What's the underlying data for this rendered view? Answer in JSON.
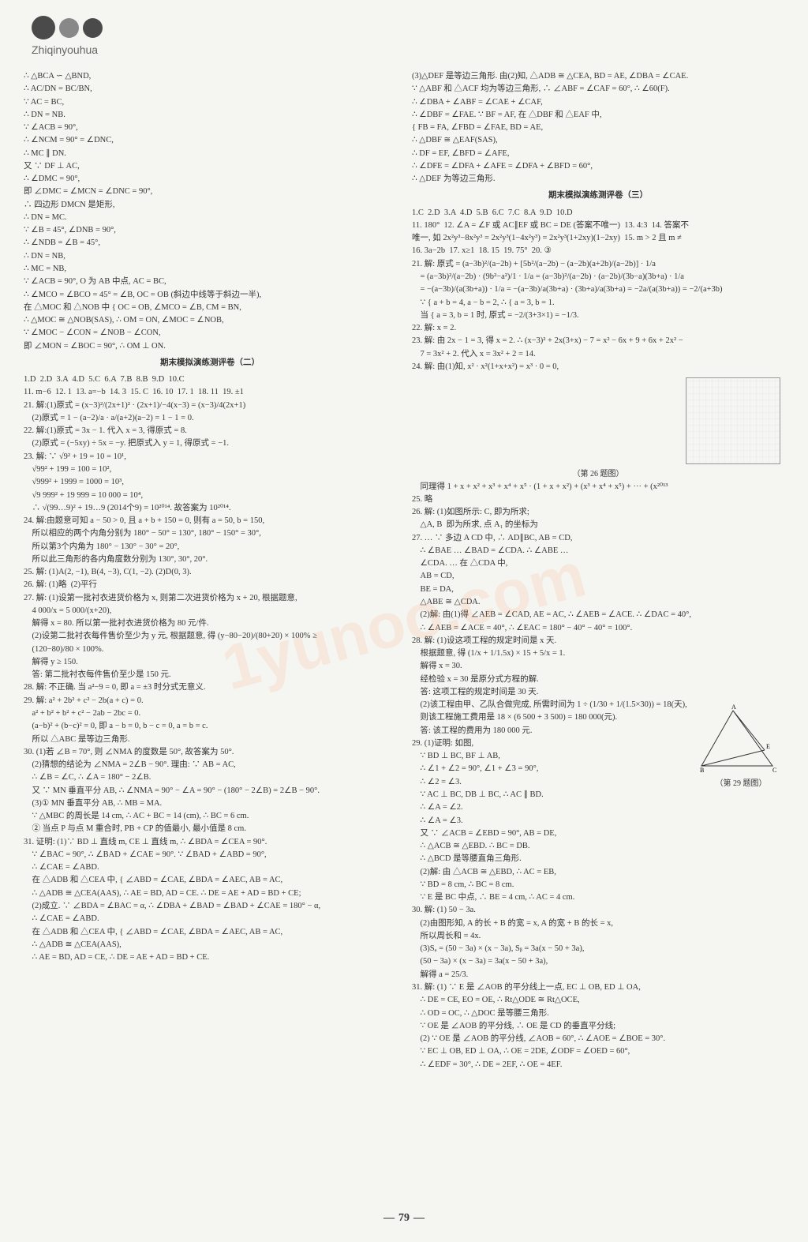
{
  "header": {
    "pinyin": "Zhiqinyouhua"
  },
  "page_number": "79",
  "watermark": "1yunoo.com",
  "left_column": {
    "lines": [
      "∴ △BCA ∽ △BND,",
      "∴ AC/DN = BC/BN,",
      "∵ AC = BC,",
      "∴ DN = NB.",
      "∵ ∠ACB = 90°,",
      "∴ ∠NCM = 90° = ∠DNC,",
      "∴ MC ∥ DN.",
      "又 ∵ DF ⊥ AC,",
      "∴ ∠DMC = 90°,",
      "即 ∠DMC = ∠MCN = ∠DNC = 90°,",
      "∴ 四边形 DMCN 是矩形,",
      "∴ DN = MC.",
      "∵ ∠B = 45°, ∠DNB = 90°,",
      "∴ ∠NDB = ∠B = 45°,",
      "∴ DN = NB,",
      "∴ MC = NB,",
      "∵ ∠ACB = 90°, O 为 AB 中点, AC = BC,",
      "∴ ∠MCO = ∠BCO = 45° = ∠B, OC = OB (斜边中线等于斜边一半),",
      "在 △MOC 和 △NOB 中 { OC = OB, ∠MCO = ∠B, CM = BN,",
      "∴ △MOC ≅ △NOB(SAS), ∴ OM = ON, ∠MOC = ∠NOB,",
      "∵ ∠MOC − ∠CON = ∠NOB − ∠CON,",
      "即 ∠MON = ∠BOC = 90°, ∴ OM ⊥ ON."
    ],
    "exam2_title": "期末模拟演练测评卷（二）",
    "exam2_answers": "1.D  2.D  3.A  4.D  5.C  6.A  7.B  8.B  9.D  10.C",
    "exam2_fill": "11. m−6  12. 1  13. a=−b  14. 3  15. C  16. 10  17. 1  18. 11  19. ±1",
    "problems": [
      "21. 解:(1)原式 = (x−3)²/(2x+1)² · (2x+1)/−4(x−3) = (x−3)/4(2x+1)",
      "    (2)原式 = 1 − (a−2)/a · a/(a+2)(a−2) = 1 − 1 = 0.",
      "22. 解:(1)原式 = 3x − 1. 代入 x = 3, 得原式 = 8.",
      "    (2)原式 = (−5xy) ÷ 5x = −y. 把原式入 y = 1, 得原式 = −1.",
      "23. 解: ∵ √9² + 19 = 10 = 10¹,",
      "    √99² + 199 = 100 = 10²,",
      "    √999² + 1999 = 1000 = 10³,",
      "    √9 999² + 19 999 = 10 000 = 10⁴,",
      "    ∴ √(99…9)² + 19…9 (2014个9) = 10²⁰¹⁴. 故答案为 10²⁰¹⁴.",
      "24. 解:由题意可知 a − 50 > 0, 且 a + b + 150 = 0, 则有 a = 50, b = 150,",
      "    所以相应的两个内角分别为 180° − 50° = 130°, 180° − 150° = 30°,",
      "    所以第3个内角为 180° − 130° − 30° = 20°,",
      "    所以此三角形的各内角度数分别为 130°, 30°, 20°.",
      "25. 解: (1)A(2, −1), B(4, −3), C(1, −2). (2)D(0, 3).",
      "26. 解: (1)略  (2)平行",
      "27. 解: (1)设第一批衬衣进货价格为 x, 则第二次进货价格为 x + 20, 根据题意,",
      "    4 000/x = 5 000/(x+20),",
      "    解得 x = 80. 所以第一批衬衣进货价格为 80 元/件.",
      "    (2)设第二批衬衣每件售价至少为 y 元, 根据题意, 得 (y−80−20)/(80+20) × 100% ≥",
      "    (120−80)/80 × 100%.",
      "    解得 y ≥ 150.",
      "    答: 第二批衬衣每件售价至少是 150 元.",
      "28. 解: 不正确. 当 a²−9 = 0, 即 a = ±3 时分式无意义.",
      "29. 解: a² + 2b² + c² − 2b(a + c) = 0.",
      "    a² + b² + b² + c² − 2ab − 2bc = 0.",
      "    (a−b)² + (b−c)² = 0, 即 a − b = 0, b − c = 0, a = b = c.",
      "    所以 △ABC 是等边三角形.",
      "30. (1)若 ∠B = 70°, 则 ∠NMA 的度数是 50°, 故答案为 50°.",
      "    (2)猜想的结论为 ∠NMA = 2∠B − 90°. 理由: ∵ AB = AC,",
      "    ∴ ∠B = ∠C, ∴ ∠A = 180° − 2∠B.",
      "    又 ∵ MN 垂直平分 AB, ∴ ∠NMA = 90° − ∠A = 90° − (180° − 2∠B) = 2∠B − 90°.",
      "    (3)① MN 垂直平分 AB, ∴ MB = MA.",
      "    ∵ △MBC 的周长是 14 cm, ∴ AC + BC = 14 (cm), ∴ BC = 6 cm.",
      "    ② 当点 P 与点 M 重合时, PB + CP 的值最小, 最小值是 8 cm.",
      "31. 证明: (1)∵ BD ⊥ 直线 m, CE ⊥ 直线 m, ∴ ∠BDA = ∠CEA = 90°.",
      "    ∵ ∠BAC = 90°, ∴ ∠BAD + ∠CAE = 90°. ∵ ∠BAD + ∠ABD = 90°,",
      "    ∴ ∠CAE = ∠ABD.",
      "    在 △ADB 和 △CEA 中, { ∠ABD = ∠CAE, ∠BDA = ∠AEC, AB = AC,",
      "    ∴ △ADB ≅ △CEA(AAS), ∴ AE = BD, AD = CE. ∴ DE = AE + AD = BD + CE;",
      "    (2)成立. ∵ ∠BDA = ∠BAC = α, ∴ ∠DBA + ∠BAD = ∠BAD + ∠CAE = 180° − α,",
      "    ∴ ∠CAE = ∠ABD.",
      "    在 △ADB 和 △CEA 中, { ∠ABD = ∠CAE, ∠BDA = ∠AEC, AB = AC,",
      "    ∴ △ADB ≅ △CEA(AAS),",
      "    ∴ AE = BD, AD = CE, ∴ DE = AE + AD = BD + CE."
    ]
  },
  "right_column": {
    "lines": [
      "(3)△DEF 是等边三角形. 由(2)知, △ADB ≅ △CEA, BD = AE, ∠DBA = ∠CAE.",
      "∵ △ABF 和 △ACF 均为等边三角形, ∴ ∠ABF = ∠CAF = 60°, ∴ ∠60(F).",
      "∴ ∠DBA + ∠ABF = ∠CAE + ∠CAF,",
      "∴ ∠DBF = ∠FAE. ∵ BF = AF, 在 △DBF 和 △EAF 中,",
      "{ FB = FA, ∠FBD = ∠FAE, BD = AE,",
      "∴ △DBF ≅ △EAF(SAS),",
      "∴ DF = EF, ∠BFD = ∠AFE,",
      "∴ ∠DFE = ∠DFA + ∠AFE = ∠DFA + ∠BFD = 60°,",
      "∴ △DEF 为等边三角形."
    ],
    "exam3_title": "期末模拟演练测评卷（三）",
    "exam3_answers": "1.C  2.D  3.A  4.D  5.B  6.C  7.C  8.A  9.D  10.D",
    "exam3_fill": "11. 180°  12. ∠A = ∠F 或 AC∥EF 或 BC = DE (答案不唯一)  13. 4:3  14. 答案不",
    "exam3_fill2": "唯一, 如 2x²y³−8x²y³ = 2x²y³(1−4x²y³) = 2x²y³(1+2xy)(1−2xy)  15. m > 2 且 m ≠",
    "exam3_fill3": "16. 3a−2b  17. x≥1  18. 15  19. 75°  20. ③",
    "problems": [
      "21. 解: 原式 = (a−3b)²/(a−2b) + [5b²/(a−2b) − (a−2b)(a+2b)/(a−2b)] · 1/a",
      "    = (a−3b)²/(a−2b) · (9b²−a²)/1 · 1/a = (a−3b)²/(a−2b) · (a−2b)/(3b−a)(3b+a) · 1/a",
      "    = −(a−3b)/(a(3b+a)) · 1/a = −(a−3b)/a(3b+a) · (3b+a)/a(3b+a) = −2a/(a(3b+a)) = −2/(a+3b)",
      "    ∵ { a + b = 4, a − b = 2, ∴ { a = 3, b = 1.",
      "    当 { a = 3, b = 1 时, 原式 = −2/(3+3×1) = −1/3.",
      "22. 解: x = 2.",
      "23. 解: 由 2x − 1 = 3, 得 x = 2. ∴ (x−3)² + 2x(3+x) − 7 = x² − 6x + 9 + 6x + 2x² −",
      "    7 = 3x² + 2. 代入 x = 3x² + 2 = 14.",
      "24. 解: 由(1)知, x² · x²(1+x+x²) = x³ · 0 = 0,",
      "    同理得 1 + x + x² + x³ + x⁴ + x⁵ · (1 + x + x²) + (x³ + x⁴ + x⁵) + ··· + (x²⁰¹³",
      "25. 略",
      "26. 解: (1)如图所示: C, 即为所求;",
      "    △A, B  即为所求, 点 A₁ 的坐标为",
      "27. … ∵ 多边 A CD 中, ∴ AD∥BC, AB = CD,",
      "    ∴ ∠BAE … ∠BAD = ∠CDA. ∴ ∠ABE …",
      "    ∠CDA. … 在 △CDA 中,",
      "    AB = CD,",
      "    BE = DA,",
      "    △ABE ≅ △CDA.",
      "    (2)解: 由(1)得 ∠AEB = ∠CAD, AE = AC, ∴ ∠AEB = ∠ACE. ∴ ∠DAC = 40°,",
      "    ∴ ∠AEB = ∠ACE = 40°, ∴ ∠EAC = 180° − 40° − 40° = 100°.",
      "28. 解: (1)设这项工程的规定时间是 x 天.",
      "    根据题意, 得 (1/x + 1/1.5x) × 15 + 5/x = 1.",
      "    解得 x = 30.",
      "    经检验 x = 30 是原分式方程的解.",
      "    答: 这项工程的规定时间是 30 天.",
      "    (2)该工程由甲、乙队合做完成, 所需时间为 1 ÷ (1/30 + 1/(1.5×30)) = 18(天),",
      "    则该工程施工费用是 18 × (6 500 + 3 500) = 180 000(元).",
      "    答: 该工程的费用为 180 000 元.",
      "29. (1)证明: 如图,",
      "    ∵ BD ⊥ BC, BF ⊥ AB,",
      "    ∴ ∠1 + ∠2 = 90°, ∠1 + ∠3 = 90°,",
      "    ∴ ∠2 = ∠3.",
      "    ∵ AC ⊥ BC, DB ⊥ BC, ∴ AC ∥ BD.",
      "    ∴ ∠A = ∠2.",
      "    ∴ ∠A = ∠3.",
      "    又 ∵ ∠ACB = ∠EBD = 90°, AB = DE,",
      "    ∴ △ACB ≅ △EBD. ∴ BC = DB.",
      "    ∴ △BCD 是等腰直角三角形.",
      "    (2)解: 由 △ACB ≅ △EBD, ∴ AC = EB,",
      "    ∵ BD = 8 cm, ∴ BC = 8 cm.",
      "    ∵ E 是 BC 中点, ∴ BE = 4 cm, ∴ AC = 4 cm.",
      "30. 解: (1) 50 − 3a.",
      "    (2)由图形知, A 的长 + B 的宽 = x, A 的宽 + B 的长 = x,",
      "    所以周长和 = 4x.",
      "    (3)Sₐ = (50 − 3a) × (x − 3a), Sᵦ = 3a(x − 50 + 3a),",
      "    (50 − 3a) × (x − 3a) = 3a(x − 50 + 3a),",
      "    解得 a = 25/3.",
      "31. 解: (1) ∵ E 是 ∠AOB 的平分线上一点, EC ⊥ OB, ED ⊥ OA,",
      "    ∴ DE = CE, EO = OE, ∴ Rt△ODE ≅ Rt△OCE,",
      "    ∴ OD = OC, ∴ △DOC 是等腰三角形.",
      "    ∵ OE 是 ∠AOB 的平分线, ∴ OE 是 CD 的垂直平分线;",
      "    (2) ∵ OE 是 ∠AOB 的平分线, ∠AOB = 60°, ∴ ∠AOE = ∠BOE = 30°.",
      "    ∵ EC ⊥ OB, ED ⊥ OA, ∴ OE = 2DE, ∠ODF = ∠OED = 60°,",
      "    ∴ ∠EDF = 30°, ∴ DE = 2EF, ∴ OE = 4EF."
    ],
    "fig26_caption": "（第 26 题图）",
    "fig29_caption": "（第 29 题图）"
  }
}
